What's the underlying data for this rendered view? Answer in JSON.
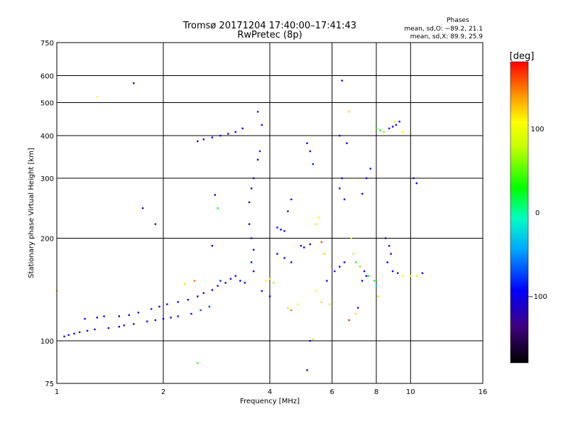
{
  "chart_data": {
    "type": "scatter",
    "title": "Tromsø 20171204 17:40:00–17:41:43",
    "subtitle": "RwPretec (8p)",
    "xlabel": "Frequency [MHz]",
    "ylabel": "Stationary phase Virtual Height [km]",
    "x_scale": "log",
    "y_scale": "log",
    "xlim": [
      1,
      16
    ],
    "ylim": [
      75,
      750
    ],
    "x_ticks": [
      1,
      2,
      4,
      6,
      8,
      10,
      16
    ],
    "x_tick_labels": [
      "1",
      "2",
      "4",
      "6",
      "8",
      "10",
      "16"
    ],
    "y_ticks": [
      75,
      100,
      200,
      300,
      400,
      500,
      600,
      750
    ],
    "y_tick_labels": [
      "75",
      "100",
      "200",
      "300",
      "400",
      "500",
      "600",
      "750"
    ],
    "grid": true,
    "phases": {
      "title": "Phases",
      "line_o": "mean, sd,O: −89.2, 21.1",
      "line_x": "mean, sd,X: 89.9, 25.9"
    },
    "colorbar": {
      "label": "[deg]",
      "range": [
        -180,
        180
      ],
      "tick_values": [
        100,
        0,
        -100
      ],
      "tick_labels": [
        "100",
        "0",
        "−100"
      ]
    },
    "points": [
      {
        "x": 1.05,
        "y": 103,
        "phase": -110
      },
      {
        "x": 1.08,
        "y": 104,
        "phase": -105
      },
      {
        "x": 1.12,
        "y": 105,
        "phase": -100
      },
      {
        "x": 1.16,
        "y": 106,
        "phase": -112
      },
      {
        "x": 1.22,
        "y": 107,
        "phase": -95
      },
      {
        "x": 1.28,
        "y": 108,
        "phase": -108
      },
      {
        "x": 1.2,
        "y": 116,
        "phase": -100
      },
      {
        "x": 1.3,
        "y": 117,
        "phase": -95
      },
      {
        "x": 1.36,
        "y": 118,
        "phase": -110
      },
      {
        "x": 1.4,
        "y": 109,
        "phase": -102
      },
      {
        "x": 1.5,
        "y": 110,
        "phase": -98
      },
      {
        "x": 1.55,
        "y": 111,
        "phase": -115
      },
      {
        "x": 1.5,
        "y": 118,
        "phase": -95
      },
      {
        "x": 1.6,
        "y": 119,
        "phase": -100
      },
      {
        "x": 1.7,
        "y": 121,
        "phase": -90
      },
      {
        "x": 1.65,
        "y": 112,
        "phase": -120
      },
      {
        "x": 1.8,
        "y": 114,
        "phase": -105
      },
      {
        "x": 1.9,
        "y": 115,
        "phase": -98
      },
      {
        "x": 1.85,
        "y": 124,
        "phase": -85
      },
      {
        "x": 1.95,
        "y": 126,
        "phase": -100
      },
      {
        "x": 2.05,
        "y": 128,
        "phase": -110
      },
      {
        "x": 2.0,
        "y": 116,
        "phase": -95
      },
      {
        "x": 2.1,
        "y": 117,
        "phase": -90
      },
      {
        "x": 2.2,
        "y": 118,
        "phase": -105
      },
      {
        "x": 2.2,
        "y": 130,
        "phase": -100
      },
      {
        "x": 2.35,
        "y": 132,
        "phase": -95
      },
      {
        "x": 2.5,
        "y": 135,
        "phase": -110
      },
      {
        "x": 2.4,
        "y": 120,
        "phase": -90
      },
      {
        "x": 2.55,
        "y": 123,
        "phase": -70
      },
      {
        "x": 2.7,
        "y": 126,
        "phase": -80
      },
      {
        "x": 2.6,
        "y": 138,
        "phase": -95
      },
      {
        "x": 2.75,
        "y": 141,
        "phase": -100
      },
      {
        "x": 2.85,
        "y": 145,
        "phase": -105
      },
      {
        "x": 2.9,
        "y": 150,
        "phase": -85
      },
      {
        "x": 3.0,
        "y": 148,
        "phase": -110
      },
      {
        "x": 3.1,
        "y": 152,
        "phase": -120
      },
      {
        "x": 3.2,
        "y": 155,
        "phase": -125
      },
      {
        "x": 3.3,
        "y": 150,
        "phase": -100
      },
      {
        "x": 3.4,
        "y": 148,
        "phase": -95
      },
      {
        "x": 2.3,
        "y": 147,
        "phase": 80
      },
      {
        "x": 2.45,
        "y": 150,
        "phase": 150
      },
      {
        "x": 2.5,
        "y": 385,
        "phase": -110
      },
      {
        "x": 2.6,
        "y": 390,
        "phase": -100
      },
      {
        "x": 2.75,
        "y": 395,
        "phase": -95
      },
      {
        "x": 2.9,
        "y": 400,
        "phase": -105
      },
      {
        "x": 3.05,
        "y": 405,
        "phase": -110
      },
      {
        "x": 3.2,
        "y": 410,
        "phase": -100
      },
      {
        "x": 3.35,
        "y": 420,
        "phase": -95
      },
      {
        "x": 3.5,
        "y": 255,
        "phase": -100
      },
      {
        "x": 3.55,
        "y": 280,
        "phase": -110
      },
      {
        "x": 3.6,
        "y": 300,
        "phase": -95
      },
      {
        "x": 3.5,
        "y": 220,
        "phase": -105
      },
      {
        "x": 3.55,
        "y": 200,
        "phase": -120
      },
      {
        "x": 3.6,
        "y": 185,
        "phase": -100
      },
      {
        "x": 3.55,
        "y": 170,
        "phase": -90
      },
      {
        "x": 3.6,
        "y": 160,
        "phase": -110
      },
      {
        "x": 3.7,
        "y": 340,
        "phase": -95
      },
      {
        "x": 3.75,
        "y": 360,
        "phase": -85
      },
      {
        "x": 3.8,
        "y": 430,
        "phase": -100
      },
      {
        "x": 3.7,
        "y": 470,
        "phase": -90
      },
      {
        "x": 3.9,
        "y": 150,
        "phase": 90
      },
      {
        "x": 4.0,
        "y": 152,
        "phase": 110
      },
      {
        "x": 4.1,
        "y": 148,
        "phase": 70
      },
      {
        "x": 3.8,
        "y": 140,
        "phase": -110
      },
      {
        "x": 4.0,
        "y": 135,
        "phase": -100
      },
      {
        "x": 4.2,
        "y": 215,
        "phase": -105
      },
      {
        "x": 4.3,
        "y": 212,
        "phase": -95
      },
      {
        "x": 4.4,
        "y": 210,
        "phase": -110
      },
      {
        "x": 4.2,
        "y": 180,
        "phase": -100
      },
      {
        "x": 4.4,
        "y": 175,
        "phase": -90
      },
      {
        "x": 4.6,
        "y": 170,
        "phase": -105
      },
      {
        "x": 4.5,
        "y": 240,
        "phase": -110
      },
      {
        "x": 4.6,
        "y": 260,
        "phase": -95
      },
      {
        "x": 4.5,
        "y": 125,
        "phase": 120
      },
      {
        "x": 4.6,
        "y": 123,
        "phase": 150
      },
      {
        "x": 4.8,
        "y": 128,
        "phase": 100
      },
      {
        "x": 4.9,
        "y": 190,
        "phase": -100
      },
      {
        "x": 5.0,
        "y": 188,
        "phase": -110
      },
      {
        "x": 5.2,
        "y": 192,
        "phase": -95
      },
      {
        "x": 5.1,
        "y": 380,
        "phase": -100
      },
      {
        "x": 5.2,
        "y": 360,
        "phase": -105
      },
      {
        "x": 5.3,
        "y": 330,
        "phase": -90
      },
      {
        "x": 5.4,
        "y": 220,
        "phase": 90
      },
      {
        "x": 5.5,
        "y": 230,
        "phase": 110
      },
      {
        "x": 5.6,
        "y": 195,
        "phase": 160
      },
      {
        "x": 5.7,
        "y": 180,
        "phase": 120
      },
      {
        "x": 5.8,
        "y": 150,
        "phase": -100
      },
      {
        "x": 5.4,
        "y": 140,
        "phase": 100
      },
      {
        "x": 5.6,
        "y": 130,
        "phase": 120
      },
      {
        "x": 5.9,
        "y": 128,
        "phase": 80
      },
      {
        "x": 6.1,
        "y": 160,
        "phase": -110
      },
      {
        "x": 6.3,
        "y": 165,
        "phase": -100
      },
      {
        "x": 6.5,
        "y": 170,
        "phase": -95
      },
      {
        "x": 6.3,
        "y": 280,
        "phase": -110
      },
      {
        "x": 6.4,
        "y": 300,
        "phase": -100
      },
      {
        "x": 6.5,
        "y": 260,
        "phase": -105
      },
      {
        "x": 6.4,
        "y": 580,
        "phase": -100
      },
      {
        "x": 6.3,
        "y": 400,
        "phase": -110
      },
      {
        "x": 6.6,
        "y": 380,
        "phase": -100
      },
      {
        "x": 6.7,
        "y": 470,
        "phase": 120
      },
      {
        "x": 6.8,
        "y": 200,
        "phase": 100
      },
      {
        "x": 6.9,
        "y": 180,
        "phase": 80
      },
      {
        "x": 7.0,
        "y": 170,
        "phase": 30
      },
      {
        "x": 7.2,
        "y": 165,
        "phase": 60
      },
      {
        "x": 7.4,
        "y": 160,
        "phase": -100
      },
      {
        "x": 7.3,
        "y": 150,
        "phase": -110
      },
      {
        "x": 7.5,
        "y": 155,
        "phase": -95
      },
      {
        "x": 7.6,
        "y": 155,
        "phase": 40
      },
      {
        "x": 7.3,
        "y": 270,
        "phase": -100
      },
      {
        "x": 7.5,
        "y": 300,
        "phase": -110
      },
      {
        "x": 7.7,
        "y": 320,
        "phase": -90
      },
      {
        "x": 8.0,
        "y": 420,
        "phase": 40
      },
      {
        "x": 8.2,
        "y": 415,
        "phase": 20
      },
      {
        "x": 8.4,
        "y": 410,
        "phase": 60
      },
      {
        "x": 8.7,
        "y": 420,
        "phase": -110
      },
      {
        "x": 8.9,
        "y": 425,
        "phase": -100
      },
      {
        "x": 9.1,
        "y": 430,
        "phase": -105
      },
      {
        "x": 9.3,
        "y": 440,
        "phase": -95
      },
      {
        "x": 9.0,
        "y": 440,
        "phase": 80
      },
      {
        "x": 9.5,
        "y": 410,
        "phase": 110
      },
      {
        "x": 8.5,
        "y": 200,
        "phase": -100
      },
      {
        "x": 8.7,
        "y": 190,
        "phase": -110
      },
      {
        "x": 8.6,
        "y": 170,
        "phase": -95
      },
      {
        "x": 8.8,
        "y": 180,
        "phase": -105
      },
      {
        "x": 8.9,
        "y": 160,
        "phase": -100
      },
      {
        "x": 9.2,
        "y": 158,
        "phase": -110
      },
      {
        "x": 9.5,
        "y": 155,
        "phase": 100
      },
      {
        "x": 10.0,
        "y": 155,
        "phase": 110
      },
      {
        "x": 10.4,
        "y": 155,
        "phase": 90
      },
      {
        "x": 10.8,
        "y": 158,
        "phase": -110
      },
      {
        "x": 10.2,
        "y": 300,
        "phase": -100
      },
      {
        "x": 10.4,
        "y": 290,
        "phase": -95
      },
      {
        "x": 7.9,
        "y": 150,
        "phase": 40
      },
      {
        "x": 8.0,
        "y": 145,
        "phase": -20
      },
      {
        "x": 8.1,
        "y": 135,
        "phase": 120
      },
      {
        "x": 7.1,
        "y": 125,
        "phase": -110
      },
      {
        "x": 7.0,
        "y": 120,
        "phase": 120
      },
      {
        "x": 6.7,
        "y": 115,
        "phase": 170
      },
      {
        "x": 5.2,
        "y": 100,
        "phase": -100
      },
      {
        "x": 5.3,
        "y": 101,
        "phase": 120
      },
      {
        "x": 5.1,
        "y": 82,
        "phase": -110
      },
      {
        "x": 2.5,
        "y": 86,
        "phase": 40
      },
      {
        "x": 1.3,
        "y": 520,
        "phase": 110
      },
      {
        "x": 1.65,
        "y": 570,
        "phase": -120
      },
      {
        "x": 1.75,
        "y": 245,
        "phase": -110
      },
      {
        "x": 1.9,
        "y": 220,
        "phase": -100
      },
      {
        "x": 2.75,
        "y": 190,
        "phase": -115
      },
      {
        "x": 2.8,
        "y": 268,
        "phase": -100
      },
      {
        "x": 2.85,
        "y": 245,
        "phase": 20
      },
      {
        "x": 1.0,
        "y": 140,
        "phase": 120
      }
    ]
  }
}
